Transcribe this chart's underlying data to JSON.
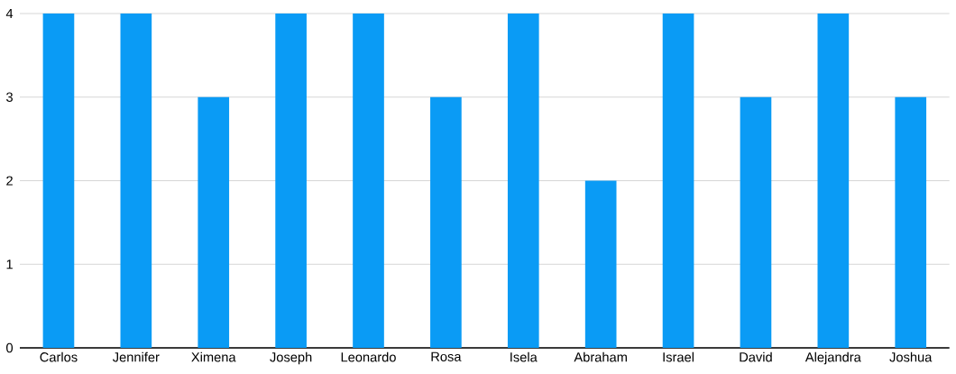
{
  "chart_data": {
    "type": "bar",
    "categories": [
      "Carlos",
      "Jennifer",
      "Ximena",
      "Joseph",
      "Leonardo",
      "Rosa",
      "Isela",
      "Abraham",
      "Israel",
      "David",
      "Alejandra",
      "Joshua"
    ],
    "values": [
      4,
      4,
      3,
      4,
      4,
      3,
      4,
      2,
      4,
      3,
      4,
      3
    ],
    "color": "#0a9bf5",
    "ylim": [
      0,
      4
    ],
    "yticks": [
      0,
      1,
      2,
      3,
      4
    ],
    "grid": "y"
  }
}
